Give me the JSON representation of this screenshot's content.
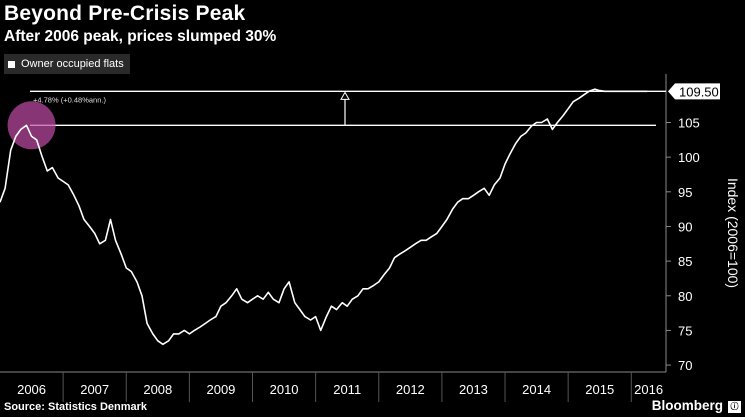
{
  "header": {
    "title": "Beyond Pre-Crisis Peak",
    "subtitle": "After 2006 peak, prices slumped 30%"
  },
  "footer": {
    "source": "Source: Statistics Denmark",
    "brand": "Bloomberg",
    "brand_mark": "ⓘ"
  },
  "colors": {
    "background": "#000000",
    "line": "#ffffff",
    "grid": "#555555",
    "highlight": "#c24ca6",
    "last_value_box": "#ffffff"
  },
  "chart_data": {
    "type": "line",
    "title": "Beyond Pre-Crisis Peak",
    "subtitle": "After 2006 peak, prices slumped 30%",
    "ylabel": "Index (2006=100)",
    "xlabel": "",
    "ylim": [
      69,
      112
    ],
    "xlim": [
      2006.0,
      2016.55
    ],
    "yticks": [
      70,
      75,
      80,
      85,
      90,
      95,
      100,
      105
    ],
    "xtick_labels": [
      "2006",
      "2007",
      "2008",
      "2009",
      "2010",
      "2011",
      "2012",
      "2013",
      "2014",
      "2015",
      "2016"
    ],
    "grid": "vertical year separators",
    "legend": [
      {
        "name": "Owner occupied flats",
        "position": "top-left"
      }
    ],
    "last_value_label": "109.50",
    "reference_lines": [
      {
        "name": "pre-crisis peak",
        "value": 104.6
      },
      {
        "name": "latest",
        "value": 109.5
      }
    ],
    "annotation": "+4.78% (+0.48%ann.)",
    "highlight_point": {
      "x": 2006.5,
      "y": 104.6
    },
    "series": [
      {
        "name": "Owner occupied flats",
        "x": [
          2006.0,
          2006.08,
          2006.17,
          2006.25,
          2006.33,
          2006.42,
          2006.5,
          2006.58,
          2006.67,
          2006.75,
          2006.83,
          2006.92,
          2007.0,
          2007.08,
          2007.17,
          2007.25,
          2007.33,
          2007.42,
          2007.5,
          2007.58,
          2007.67,
          2007.75,
          2007.83,
          2007.92,
          2008.0,
          2008.08,
          2008.17,
          2008.25,
          2008.33,
          2008.42,
          2008.5,
          2008.58,
          2008.67,
          2008.75,
          2008.83,
          2008.92,
          2009.0,
          2009.08,
          2009.17,
          2009.25,
          2009.33,
          2009.42,
          2009.5,
          2009.58,
          2009.67,
          2009.75,
          2009.83,
          2009.92,
          2010.0,
          2010.08,
          2010.17,
          2010.25,
          2010.33,
          2010.42,
          2010.5,
          2010.58,
          2010.67,
          2010.75,
          2010.83,
          2010.92,
          2011.0,
          2011.08,
          2011.17,
          2011.25,
          2011.33,
          2011.42,
          2011.5,
          2011.58,
          2011.67,
          2011.75,
          2011.83,
          2011.92,
          2012.0,
          2012.08,
          2012.17,
          2012.25,
          2012.33,
          2012.42,
          2012.5,
          2012.58,
          2012.67,
          2012.75,
          2012.83,
          2012.92,
          2013.0,
          2013.08,
          2013.17,
          2013.25,
          2013.33,
          2013.42,
          2013.5,
          2013.58,
          2013.67,
          2013.75,
          2013.83,
          2013.92,
          2014.0,
          2014.08,
          2014.17,
          2014.25,
          2014.33,
          2014.42,
          2014.5,
          2014.58,
          2014.67,
          2014.75,
          2014.83,
          2014.92,
          2015.0,
          2015.08,
          2015.17,
          2015.25,
          2015.33,
          2015.42,
          2015.5,
          2015.58,
          2015.67,
          2015.75,
          2015.83,
          2015.92,
          2016.0,
          2016.08,
          2016.17,
          2016.25
        ],
        "values": [
          93.5,
          95.5,
          101.0,
          103.0,
          104.0,
          104.6,
          103.0,
          102.5,
          100.0,
          98.0,
          98.5,
          97.0,
          96.5,
          96.0,
          94.5,
          93.0,
          91.0,
          90.0,
          89.0,
          87.5,
          88.0,
          91.0,
          88.0,
          86.0,
          84.0,
          83.5,
          82.0,
          80.0,
          76.0,
          74.5,
          73.5,
          73.0,
          73.5,
          74.5,
          74.5,
          75.0,
          74.5,
          75.0,
          75.5,
          76.0,
          76.5,
          77.0,
          78.5,
          79.0,
          80.0,
          81.0,
          79.5,
          79.0,
          79.5,
          80.0,
          79.5,
          80.5,
          79.5,
          79.0,
          81.0,
          82.0,
          79.0,
          78.0,
          77.0,
          76.5,
          77.0,
          75.0,
          77.0,
          78.5,
          78.0,
          79.0,
          78.5,
          79.5,
          80.0,
          81.0,
          81.0,
          81.5,
          82.0,
          83.0,
          84.0,
          85.5,
          86.0,
          86.5,
          87.0,
          87.5,
          88.0,
          88.0,
          88.5,
          89.0,
          90.0,
          91.0,
          92.5,
          93.5,
          94.0,
          94.0,
          94.5,
          95.0,
          95.5,
          94.5,
          96.0,
          97.0,
          99.0,
          100.5,
          102.0,
          103.0,
          103.5,
          104.5,
          105.0,
          105.0,
          105.5,
          104.0,
          105.0,
          106.0,
          107.0,
          108.0,
          108.5,
          109.0,
          109.5,
          109.8,
          109.6,
          109.5,
          109.5,
          109.5,
          109.5,
          109.5,
          109.5,
          109.5,
          109.5,
          109.5
        ]
      }
    ]
  }
}
